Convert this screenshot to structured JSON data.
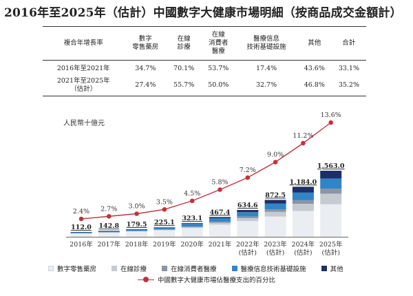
{
  "title": "2016年至2025年（估計）中國數字大健康市場明細（按商品成交金額計）",
  "table": {
    "headers": [
      "複合年增長率",
      "數字\n零售藥房",
      "在線\n診療",
      "在線\n消費者\n醫療",
      "醫療信息\n技術基礎設施",
      "其他",
      "合計"
    ],
    "rows": [
      {
        "label": "2016年至2021年",
        "values": [
          "34.7%",
          "70.1%",
          "53.7%",
          "17.4%",
          "43.6%",
          "33.1%"
        ]
      },
      {
        "label": "2021年至2025年\n（估計）",
        "values": [
          "27.4%",
          "55.7%",
          "50.0%",
          "32.7%",
          "46.8%",
          "35.2%"
        ]
      }
    ]
  },
  "chart_data": {
    "type": "bar",
    "stacked": true,
    "unit_label": "人民幣十億元",
    "categories": [
      "2016年",
      "2017年",
      "2018年",
      "2019年",
      "2020年",
      "2021年",
      "2022年\n(估計)",
      "2023年\n(估計)",
      "2024年\n(估計)",
      "2025年\n(估計)"
    ],
    "totals": [
      112.0,
      142.8,
      179.5,
      225.1,
      323.1,
      467.4,
      634.6,
      872.5,
      1184.0,
      1563.0
    ],
    "total_labels": [
      "112.0",
      "142.8",
      "179.5",
      "225.1",
      "323.1",
      "467.4",
      "634.6",
      "872.5",
      "1,184.0",
      "1,563.0"
    ],
    "series": [
      {
        "name": "數字零售藥房",
        "color": "#eaedf1",
        "values": [
          85,
          105,
          128,
          155,
          205,
          288,
          372,
          480,
          610,
          770
        ]
      },
      {
        "name": "在線診療",
        "color": "#c6cbd2",
        "values": [
          3,
          5,
          8,
          12,
          25,
          45,
          70,
          110,
          170,
          250
        ]
      },
      {
        "name": "在線消費者醫療",
        "color": "#8a95a5",
        "values": [
          2,
          3,
          5,
          7,
          14,
          26,
          40,
          60,
          85,
          118
        ]
      },
      {
        "name": "醫療信息技術基礎設施",
        "color": "#2e86c8",
        "values": [
          19,
          25,
          32,
          42,
          62,
          80,
          102,
          135,
          180,
          240
        ]
      },
      {
        "name": "其他",
        "color": "#1d2f66",
        "values": [
          3,
          4.8,
          6.5,
          9.1,
          17.1,
          28.4,
          50.6,
          87.5,
          139,
          185
        ]
      }
    ],
    "line": {
      "name": "中國數字大健康市場佔醫療支出的百分比",
      "color": "#c4313a",
      "values": [
        2.4,
        2.7,
        3.0,
        3.5,
        4.5,
        5.8,
        7.2,
        9.0,
        11.2,
        13.6
      ],
      "labels": [
        "2.4%",
        "2.7%",
        "3.0%",
        "3.5%",
        "4.5%",
        "5.8%",
        "7.2%",
        "9.0%",
        "11.2%",
        "13.6%"
      ]
    },
    "ylim": [
      0,
      1700
    ],
    "line_ylim": [
      0,
      14.5
    ],
    "grid": false,
    "legend_position": "bottom"
  }
}
